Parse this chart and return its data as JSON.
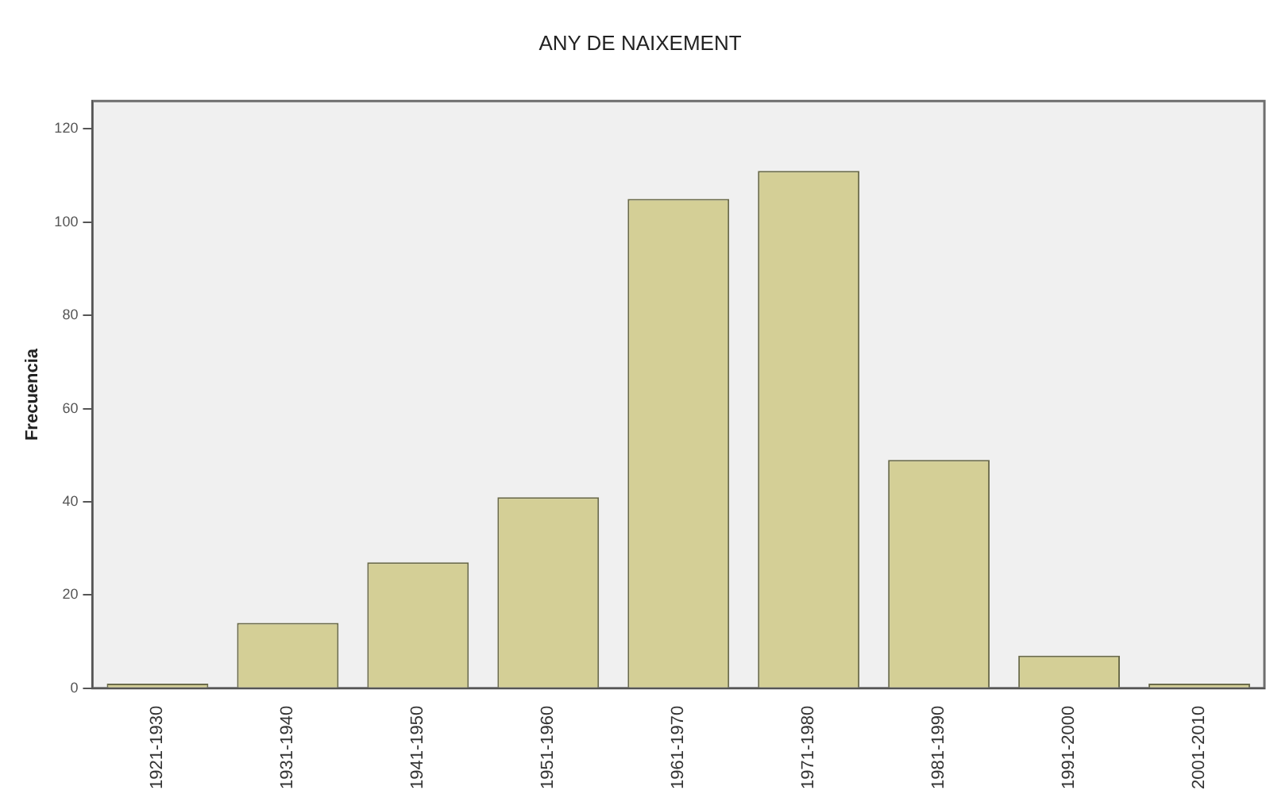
{
  "chart_data": {
    "type": "bar",
    "title": "ANY DE NAIXEMENT",
    "ylabel": "Frecuencia",
    "categories": [
      "1921-1930",
      "1931-1940",
      "1941-1950",
      "1951-1960",
      "1961-1970",
      "1971-1980",
      "1981-1990",
      "1991-2000",
      "2001-2010"
    ],
    "values": [
      1,
      14,
      27,
      41,
      105,
      111,
      49,
      7,
      1
    ],
    "color": "#d4cf96",
    "ylim": [
      0,
      126
    ],
    "yticks": [
      0,
      20,
      40,
      60,
      80,
      100,
      120
    ],
    "grid": false,
    "legend": false
  }
}
